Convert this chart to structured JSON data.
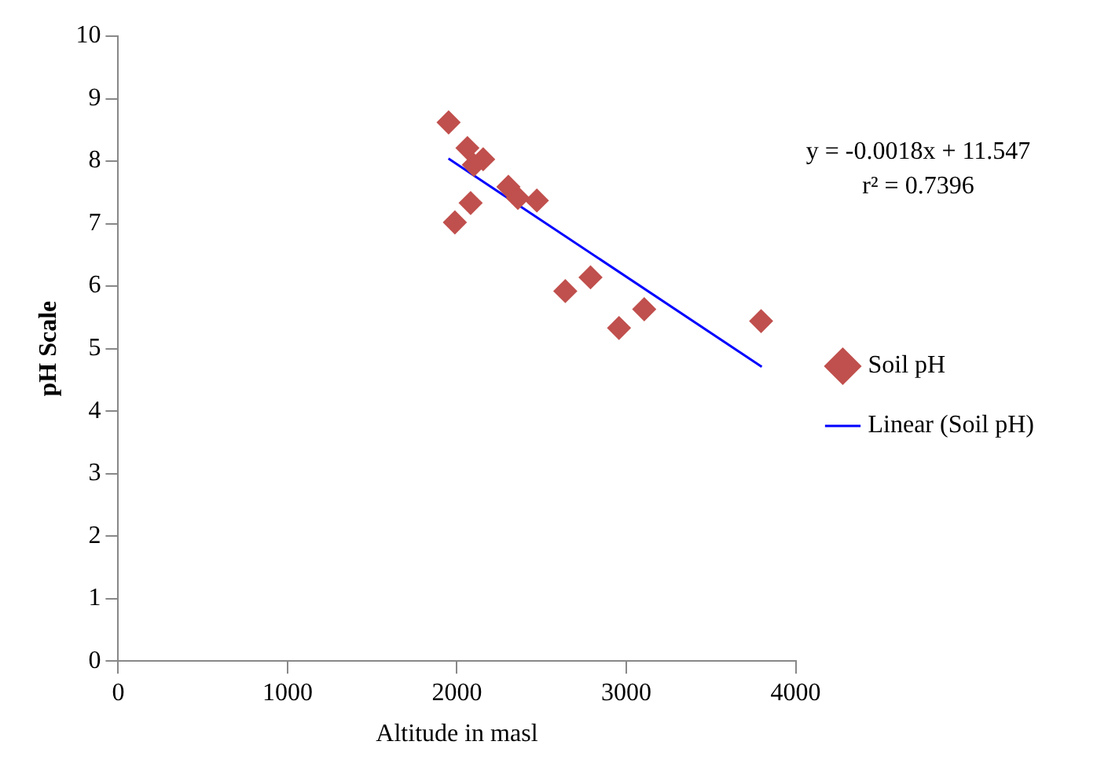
{
  "chart_data": {
    "type": "scatter",
    "xlabel": "Altitude in masl",
    "ylabel": "pH Scale",
    "series": [
      {
        "name": "Soil pH",
        "color": "#c0504d",
        "marker": "diamond",
        "x": [
          1951,
          2062,
          2155,
          2100,
          2304,
          2360,
          2472,
          2081,
          1988,
          2789,
          2640,
          3106,
          2957,
          3796
        ],
        "values": [
          8.62,
          8.21,
          8.03,
          7.94,
          7.59,
          7.41,
          7.37,
          7.33,
          7.02,
          6.14,
          5.92,
          5.63,
          5.33,
          5.44
        ]
      },
      {
        "name": "Linear (Soil pH)",
        "type": "line",
        "color": "#0000ff",
        "marker": "none",
        "x": [
          1950,
          3800
        ],
        "values": [
          8.04,
          4.71
        ]
      }
    ],
    "annotations": [
      "y = -0.0018x + 11.547",
      "r² = 0.7396"
    ],
    "xlim": [
      0,
      4000
    ],
    "xticks": [
      0,
      1000,
      2000,
      3000,
      4000
    ],
    "ylim": [
      0,
      10
    ],
    "yticks": [
      0,
      1,
      2,
      3,
      4,
      5,
      6,
      7,
      8,
      9,
      10
    ],
    "grid": false,
    "legend": "right"
  }
}
